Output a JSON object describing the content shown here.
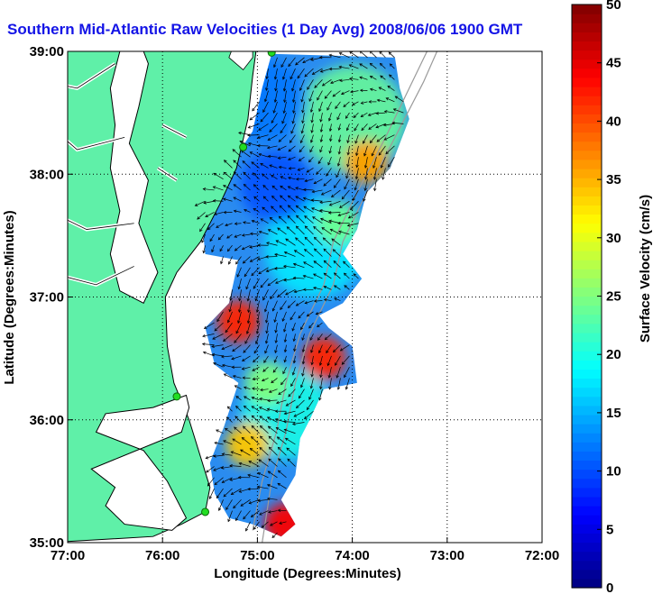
{
  "chart_data": {
    "type": "heatmap",
    "title": "Southern Mid-Atlantic Raw Velocities (1 Day Avg) 2008/06/06 1900 GMT",
    "xlabel": "Longitude (Degrees:Minutes)",
    "ylabel": "Latitude (Degrees:Minutes)",
    "colorbar_label": "Surface Velocity (cm/s)",
    "xlim": [
      -77,
      -72
    ],
    "ylim": [
      35,
      39
    ],
    "x_ticks": [
      {
        "value": -77,
        "label": "77:00"
      },
      {
        "value": -76,
        "label": "76:00"
      },
      {
        "value": -75,
        "label": "75:00"
      },
      {
        "value": -74,
        "label": "74:00"
      },
      {
        "value": -73,
        "label": "73:00"
      },
      {
        "value": -72,
        "label": "72:00"
      }
    ],
    "y_ticks": [
      {
        "value": 35,
        "label": "35:00"
      },
      {
        "value": 36,
        "label": "36:00"
      },
      {
        "value": 37,
        "label": "37:00"
      },
      {
        "value": 38,
        "label": "38:00"
      },
      {
        "value": 39,
        "label": "39:00"
      }
    ],
    "colorbar_range": [
      0,
      50
    ],
    "colorbar_ticks": [
      0,
      5,
      10,
      15,
      20,
      25,
      30,
      35,
      40,
      45,
      50
    ],
    "grid": true,
    "colormap": "jet",
    "colors": {
      "title": "#1414e6",
      "land": "#5ff0a8",
      "coast": "#000000",
      "bathymetry": "#9a9a9a",
      "station": "#22dd22"
    },
    "hotspots": [
      {
        "lon": -73.85,
        "lat": 38.1,
        "speed": 36
      },
      {
        "lon": -75.2,
        "lat": 36.8,
        "speed": 42
      },
      {
        "lon": -74.3,
        "lat": 36.5,
        "speed": 42
      },
      {
        "lon": -74.7,
        "lat": 35.15,
        "speed": 44
      },
      {
        "lon": -75.1,
        "lat": 35.8,
        "speed": 34
      },
      {
        "lon": -74.15,
        "lat": 37.6,
        "speed": 24
      },
      {
        "lon": -74.9,
        "lat": 36.3,
        "speed": 25
      }
    ],
    "stations": [
      {
        "lon": -74.85,
        "lat": 38.99
      },
      {
        "lon": -75.15,
        "lat": 38.22
      },
      {
        "lon": -75.85,
        "lat": 36.19
      },
      {
        "lon": -75.55,
        "lat": 35.25
      }
    ]
  }
}
